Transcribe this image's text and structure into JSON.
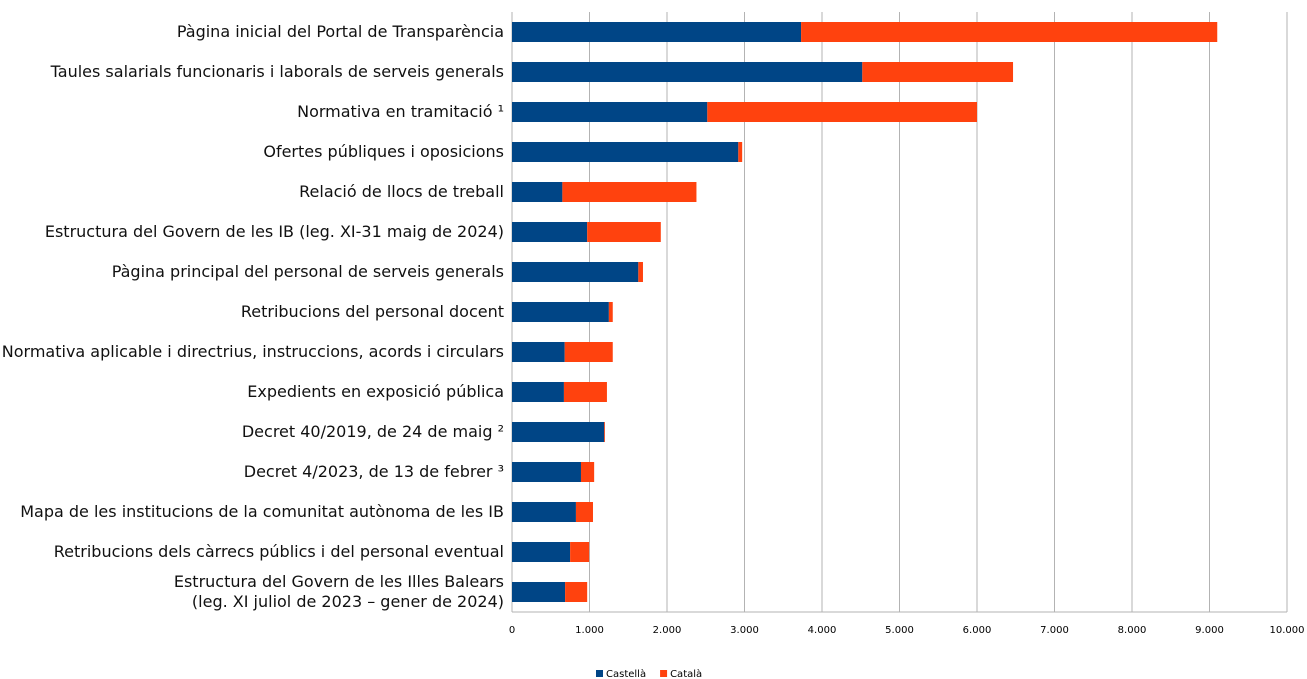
{
  "chart_data": {
    "type": "stacked_bar_horizontal",
    "categories": [
      "Pàgina inicial del Portal de Transparència",
      "Taules salarials funcionaris i laborals de serveis generals",
      "Normativa en tramitació ¹",
      "Ofertes públiques i oposicions",
      "Relació de llocs de treball",
      "Estructura del Govern de les IB (leg. XI-31 maig de 2024)",
      "Pàgina principal del personal de serveis generals",
      "Retribucions del personal docent",
      "Normativa aplicable i directrius, instruccions, acords i circulars",
      "Expedients en exposició pública",
      "Decret 40/2019, de 24 de maig  ²",
      "Decret 4/2023, de 13 de febrer ³",
      "Mapa de les institucions de la comunitat autònoma de les IB",
      "Retribucions dels càrrecs públics i del personal eventual",
      "Estructura del Govern de les Illes Balears\n(leg. XI juliol de 2023 – gener de 2024)"
    ],
    "series": [
      {
        "name": "Castellà",
        "color": "#004586",
        "values": [
          3730,
          4520,
          2520,
          2920,
          650,
          970,
          1630,
          1250,
          680,
          670,
          1190,
          890,
          825,
          750,
          685
        ]
      },
      {
        "name": "Català",
        "color": "#ff420e",
        "values": [
          5370,
          1945,
          3480,
          50,
          1730,
          950,
          60,
          50,
          620,
          555,
          10,
          170,
          220,
          245,
          285
        ]
      }
    ],
    "xlim": [
      0,
      10000
    ],
    "xticks": [
      0,
      {
        "value": 1000,
        "label": "1.000"
      },
      {
        "value": 2000,
        "label": "2.000"
      },
      {
        "value": 3000,
        "label": "3.000"
      },
      {
        "value": 4000,
        "label": "4.000"
      },
      {
        "value": 5000,
        "label": "5.000"
      },
      {
        "value": 6000,
        "label": "6.000"
      },
      {
        "value": 7000,
        "label": "7.000"
      },
      {
        "value": 8000,
        "label": "8.000"
      },
      {
        "value": 9000,
        "label": "9.000"
      },
      {
        "value": 10000,
        "label": "10.000"
      }
    ],
    "grid": true,
    "legend": "bottom"
  }
}
